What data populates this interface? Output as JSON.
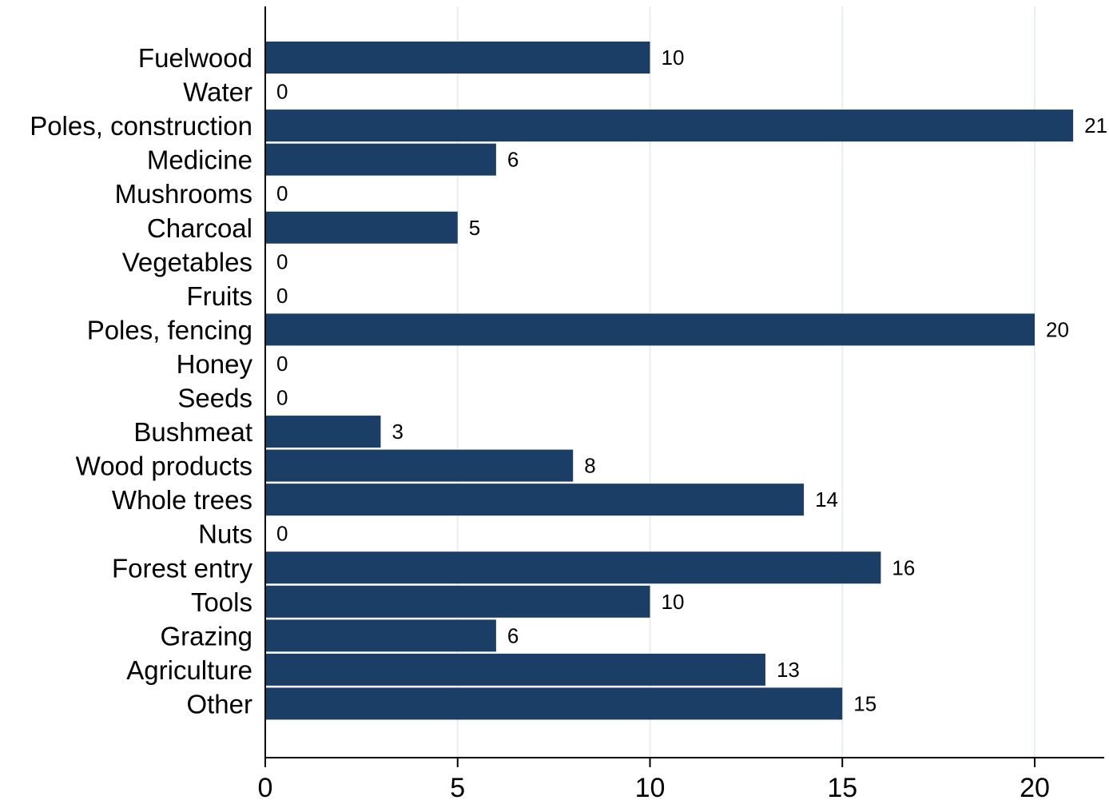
{
  "chart_data": {
    "type": "bar",
    "orientation": "horizontal",
    "categories": [
      "Fuelwood",
      "Water",
      "Poles, construction",
      "Medicine",
      "Mushrooms",
      "Charcoal",
      "Vegetables",
      "Fruits",
      "Poles, fencing",
      "Honey",
      "Seeds",
      "Bushmeat",
      "Wood products",
      "Whole trees",
      "Nuts",
      "Forest entry",
      "Tools",
      "Grazing",
      "Agriculture",
      "Other"
    ],
    "values": [
      10,
      0,
      21,
      6,
      0,
      5,
      0,
      0,
      20,
      0,
      0,
      3,
      8,
      14,
      0,
      16,
      10,
      6,
      13,
      15
    ],
    "xticks": [
      0,
      5,
      10,
      15,
      20
    ],
    "xlim": [
      0,
      21.8
    ],
    "grid": true,
    "bar_color": "#1a3e66",
    "data_labels": true,
    "title": "",
    "xlabel": "",
    "ylabel": ""
  }
}
